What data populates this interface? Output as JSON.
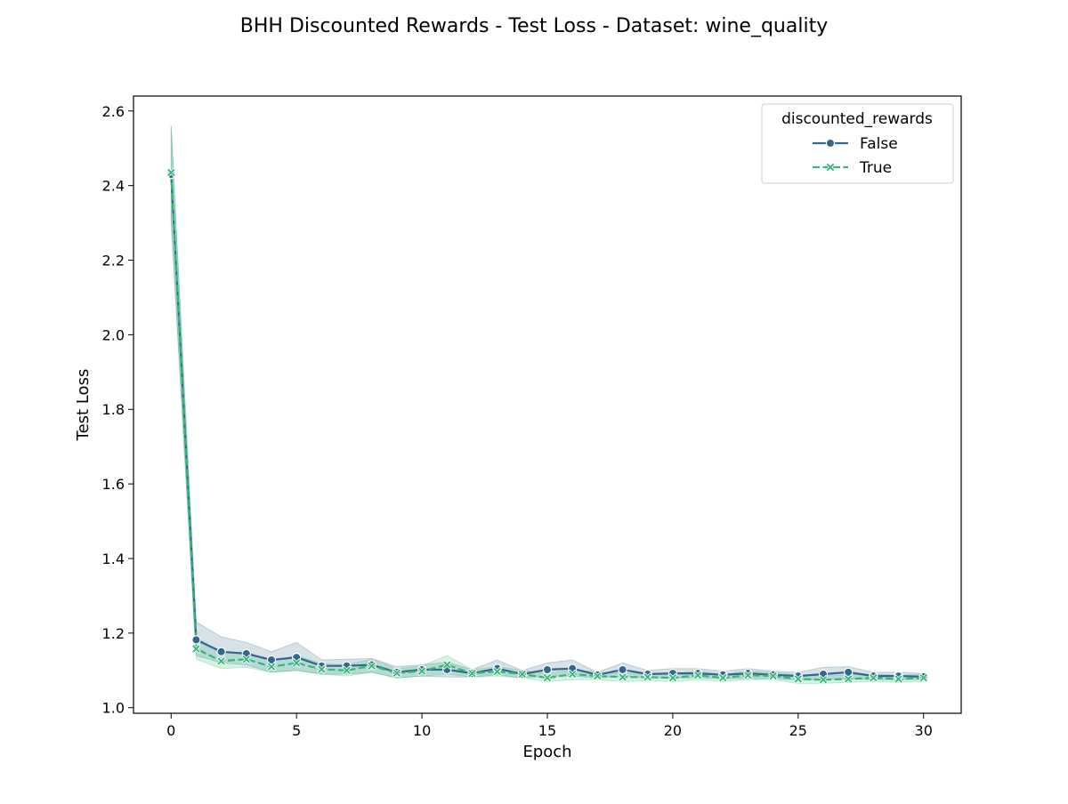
{
  "chart_data": {
    "type": "line",
    "title": "BHH Discounted Rewards - Test Loss - Dataset: wine_quality",
    "xlabel": "Epoch",
    "ylabel": "Test Loss",
    "xlim": [
      -1.5,
      31.5
    ],
    "ylim": [
      0.985,
      2.64
    ],
    "xticks": [
      0,
      5,
      10,
      15,
      20,
      25,
      30
    ],
    "yticks": [
      1.0,
      1.2,
      1.4,
      1.6,
      1.8,
      2.0,
      2.2,
      2.4,
      2.6
    ],
    "ytick_labels": [
      "1.0",
      "1.2",
      "1.4",
      "1.6",
      "1.8",
      "2.0",
      "2.2",
      "2.4",
      "2.6"
    ],
    "grid": false,
    "legend": {
      "title": "discounted_rewards",
      "placement": "top-right"
    },
    "x": [
      0,
      1,
      2,
      3,
      4,
      5,
      6,
      7,
      8,
      9,
      10,
      11,
      12,
      13,
      14,
      15,
      16,
      17,
      18,
      19,
      20,
      21,
      22,
      23,
      24,
      25,
      26,
      27,
      28,
      29,
      30
    ],
    "series": [
      {
        "name": "False",
        "color": "#31688e",
        "marker": "circle",
        "dash": "solid",
        "values": [
          2.43,
          1.182,
          1.15,
          1.145,
          1.128,
          1.135,
          1.112,
          1.112,
          1.115,
          1.095,
          1.102,
          1.102,
          1.092,
          1.105,
          1.09,
          1.102,
          1.105,
          1.088,
          1.102,
          1.09,
          1.092,
          1.092,
          1.088,
          1.092,
          1.088,
          1.085,
          1.09,
          1.095,
          1.085,
          1.085,
          1.083
        ],
        "band_low": [
          2.3,
          1.14,
          1.12,
          1.115,
          1.095,
          1.1,
          1.09,
          1.09,
          1.095,
          1.08,
          1.085,
          1.082,
          1.082,
          1.088,
          1.08,
          1.085,
          1.085,
          1.08,
          1.085,
          1.08,
          1.08,
          1.08,
          1.078,
          1.078,
          1.078,
          1.075,
          1.075,
          1.078,
          1.075,
          1.075,
          1.075
        ],
        "band_high": [
          2.56,
          1.23,
          1.19,
          1.175,
          1.15,
          1.175,
          1.128,
          1.13,
          1.132,
          1.11,
          1.115,
          1.122,
          1.102,
          1.128,
          1.1,
          1.12,
          1.128,
          1.095,
          1.12,
          1.1,
          1.105,
          1.105,
          1.098,
          1.105,
          1.098,
          1.095,
          1.108,
          1.11,
          1.095,
          1.095,
          1.092
        ]
      },
      {
        "name": "True",
        "color": "#35b779",
        "marker": "x",
        "dash": "dashed",
        "values": [
          2.435,
          1.158,
          1.125,
          1.13,
          1.11,
          1.12,
          1.103,
          1.1,
          1.112,
          1.093,
          1.098,
          1.115,
          1.092,
          1.097,
          1.09,
          1.08,
          1.09,
          1.085,
          1.082,
          1.082,
          1.08,
          1.087,
          1.08,
          1.087,
          1.085,
          1.077,
          1.075,
          1.077,
          1.08,
          1.077,
          1.08
        ],
        "band_low": [
          2.31,
          1.13,
          1.105,
          1.108,
          1.095,
          1.1,
          1.09,
          1.085,
          1.095,
          1.08,
          1.085,
          1.09,
          1.082,
          1.085,
          1.08,
          1.07,
          1.075,
          1.075,
          1.07,
          1.072,
          1.07,
          1.075,
          1.07,
          1.075,
          1.075,
          1.065,
          1.065,
          1.068,
          1.07,
          1.068,
          1.07
        ],
        "band_high": [
          2.56,
          1.19,
          1.145,
          1.15,
          1.125,
          1.14,
          1.118,
          1.115,
          1.13,
          1.105,
          1.112,
          1.14,
          1.102,
          1.11,
          1.1,
          1.092,
          1.102,
          1.095,
          1.093,
          1.092,
          1.092,
          1.098,
          1.09,
          1.098,
          1.095,
          1.088,
          1.085,
          1.088,
          1.09,
          1.087,
          1.09
        ]
      }
    ]
  }
}
